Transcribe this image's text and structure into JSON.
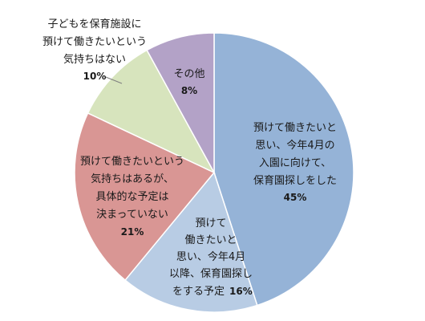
{
  "chart_data": {
    "type": "pie",
    "slices": [
      {
        "label_lines": [
          "預けて働きたいと",
          "思い、今年4月の",
          "入園に向けて、",
          "保育園探しをした"
        ],
        "value": 45,
        "value_label": "45%",
        "color": "#95b3d7"
      },
      {
        "label_lines": [
          "預けて",
          "働きたいと",
          "思い、今年4月",
          "以降、保育園探し",
          "をする予定"
        ],
        "value": 16,
        "value_label": "16%",
        "color": "#b8cce4"
      },
      {
        "label_lines": [
          "預けて働きたいという",
          "気持ちはあるが、",
          "具体的な予定は",
          "決まっていない"
        ],
        "value": 21,
        "value_label": "21%",
        "color": "#d99694"
      },
      {
        "label_lines": [
          "子どもを保育施設に",
          "預けて働きたいという",
          "気持ちはない"
        ],
        "value": 10,
        "value_label": "10%",
        "color": "#d7e4bd"
      },
      {
        "label_lines": [
          "その他"
        ],
        "value": 8,
        "value_label": "8%",
        "color": "#b3a2c7"
      }
    ]
  }
}
